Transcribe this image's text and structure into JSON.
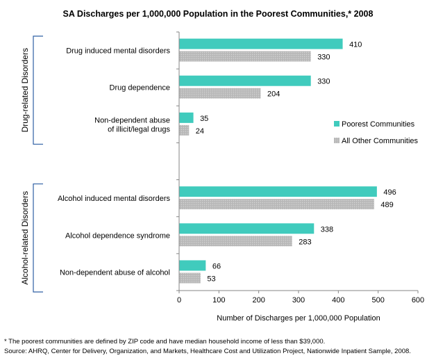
{
  "chart_data": {
    "type": "bar",
    "orientation": "horizontal",
    "title": "SA Discharges per 1,000,000  Population in the Poorest Communities,* 2008",
    "xlabel": "Number of Discharges per 1,000,000 Population",
    "ylabel": "",
    "xlim": [
      0,
      600
    ],
    "xticks": [
      0,
      100,
      200,
      300,
      400,
      500,
      600
    ],
    "grid": false,
    "legend_position": "right",
    "series": [
      {
        "name": "Poorest Communities",
        "color": "#40cbbd",
        "pattern": "solid",
        "values": [
          410,
          330,
          35,
          496,
          338,
          66
        ]
      },
      {
        "name": "All Other Communities",
        "color": "#bdbdbd",
        "pattern": "dotted",
        "values": [
          330,
          204,
          24,
          489,
          283,
          53
        ]
      }
    ],
    "categories": [
      {
        "label": [
          "Drug induced mental disorders"
        ],
        "group": "Drug-related Disorders"
      },
      {
        "label": [
          "Drug dependence"
        ],
        "group": "Drug-related Disorders"
      },
      {
        "label": [
          "Non-dependent abuse",
          "of illicit/legal drugs"
        ],
        "group": "Drug-related Disorders"
      },
      {
        "label": [
          "Alcohol induced mental disorders"
        ],
        "group": "Alcohol-related Disorders"
      },
      {
        "label": [
          "Alcohol dependence syndrome"
        ],
        "group": "Alcohol-related Disorders"
      },
      {
        "label": [
          "Non-dependent abuse of alcohol"
        ],
        "group": "Alcohol-related Disorders"
      }
    ],
    "groups": [
      "Drug-related Disorders",
      "Alcohol-related Disorders"
    ]
  },
  "footnotes": {
    "note": "* The poorest communities are defined by ZIP code and have median household income of less than $39,000.",
    "source": "Source:  AHRQ, Center for Delivery, Organization, and Markets, Healthcare Cost and Utilization Project, Nationwide Inpatient Sample, 2008."
  }
}
